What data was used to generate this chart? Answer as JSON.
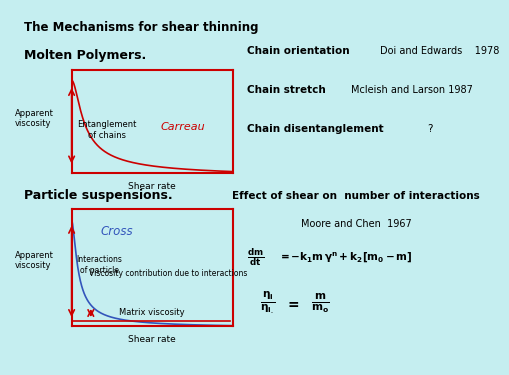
{
  "bg_color": "#c5eef0",
  "title": "The Mechanisms for shear thinning",
  "section1": "Molten Polymers.",
  "section2": "Particle suspensions.",
  "chain_orientation": "Chain orientation",
  "doi_edwards": "Doi and Edwards    1978",
  "chain_stretch": "Chain stretch",
  "mcleish": "Mcleish and Larson 1987",
  "chain_disent": "Chain disentanglement",
  "question": "?",
  "effect_title": "Effect of shear on  number of interactions",
  "moore": "Moore and Chen  1967",
  "carreau_label": "Carreau",
  "cross_label": "Cross",
  "entanglement_label": "Entanglement\nof chains",
  "interactions_label": "Interactions\nof particle",
  "viscosity_contrib_label": "Viscosity contribution due to interactions",
  "matrix_label": "Matrix viscosity",
  "apparent_viscosity": "Apparent\nviscosity",
  "shear_rate": "Shear rate",
  "red_color": "#cc0000",
  "blue_color": "#3355bb",
  "grid_color": "#aadddd"
}
